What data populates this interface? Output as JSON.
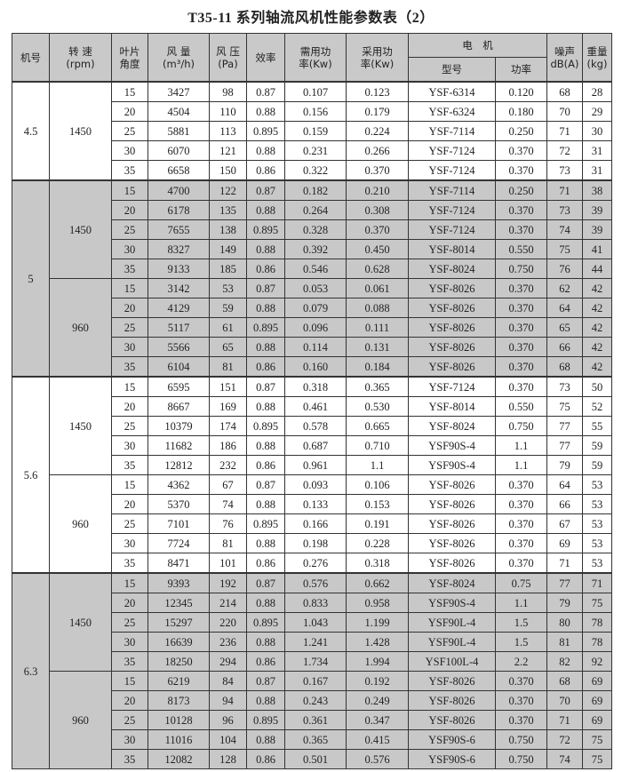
{
  "title": "T35-11 系列轴流风机性能参数表（2）",
  "headers": {
    "model": "机号",
    "speed": "转 速\n(rpm)",
    "angle": "叶片\n角度",
    "flow": "风 量\n(m³/h)",
    "pressure": "风 压\n(Pa)",
    "efficiency": "效率",
    "required_power": "需用功\n率(Kw)",
    "adopted_power": "采用功\n率(Kw)",
    "motor": "电　机",
    "motor_type": "型号",
    "motor_power": "功率",
    "noise": "噪声\ndB(A)",
    "weight": "重量\n(kg)"
  },
  "groups": [
    {
      "model": "4.5",
      "shade": "white",
      "speeds": [
        {
          "rpm": "1450",
          "rows": [
            [
              "15",
              "3427",
              "98",
              "0.87",
              "0.107",
              "0.123",
              "YSF-6314",
              "0.120",
              "68",
              "28"
            ],
            [
              "20",
              "4504",
              "110",
              "0.88",
              "0.156",
              "0.179",
              "YSF-6324",
              "0.180",
              "70",
              "29"
            ],
            [
              "25",
              "5881",
              "113",
              "0.895",
              "0.159",
              "0.224",
              "YSF-7114",
              "0.250",
              "71",
              "30"
            ],
            [
              "30",
              "6070",
              "121",
              "0.88",
              "0.231",
              "0.266",
              "YSF-7124",
              "0.370",
              "72",
              "31"
            ],
            [
              "35",
              "6658",
              "150",
              "0.86",
              "0.322",
              "0.370",
              "YSF-7124",
              "0.370",
              "73",
              "31"
            ]
          ]
        }
      ]
    },
    {
      "model": "5",
      "shade": "gray",
      "speeds": [
        {
          "rpm": "1450",
          "rows": [
            [
              "15",
              "4700",
              "122",
              "0.87",
              "0.182",
              "0.210",
              "YSF-7114",
              "0.250",
              "71",
              "38"
            ],
            [
              "20",
              "6178",
              "135",
              "0.88",
              "0.264",
              "0.308",
              "YSF-7124",
              "0.370",
              "73",
              "39"
            ],
            [
              "25",
              "7655",
              "138",
              "0.895",
              "0.328",
              "0.370",
              "YSF-7124",
              "0.370",
              "74",
              "39"
            ],
            [
              "30",
              "8327",
              "149",
              "0.88",
              "0.392",
              "0.450",
              "YSF-8014",
              "0.550",
              "75",
              "41"
            ],
            [
              "35",
              "9133",
              "185",
              "0.86",
              "0.546",
              "0.628",
              "YSF-8024",
              "0.750",
              "76",
              "44"
            ]
          ]
        },
        {
          "rpm": "960",
          "rows": [
            [
              "15",
              "3142",
              "53",
              "0.87",
              "0.053",
              "0.061",
              "YSF-8026",
              "0.370",
              "62",
              "42"
            ],
            [
              "20",
              "4129",
              "59",
              "0.88",
              "0.079",
              "0.088",
              "YSF-8026",
              "0.370",
              "64",
              "42"
            ],
            [
              "25",
              "5117",
              "61",
              "0.895",
              "0.096",
              "0.111",
              "YSF-8026",
              "0.370",
              "65",
              "42"
            ],
            [
              "30",
              "5566",
              "65",
              "0.88",
              "0.114",
              "0.131",
              "YSF-8026",
              "0.370",
              "66",
              "42"
            ],
            [
              "35",
              "6104",
              "81",
              "0.86",
              "0.160",
              "0.184",
              "YSF-8026",
              "0.370",
              "68",
              "42"
            ]
          ]
        }
      ]
    },
    {
      "model": "5.6",
      "shade": "white",
      "speeds": [
        {
          "rpm": "1450",
          "rows": [
            [
              "15",
              "6595",
              "151",
              "0.87",
              "0.318",
              "0.365",
              "YSF-7124",
              "0.370",
              "73",
              "50"
            ],
            [
              "20",
              "8667",
              "169",
              "0.88",
              "0.461",
              "0.530",
              "YSF-8014",
              "0.550",
              "75",
              "52"
            ],
            [
              "25",
              "10379",
              "174",
              "0.895",
              "0.578",
              "0.665",
              "YSF-8024",
              "0.750",
              "77",
              "55"
            ],
            [
              "30",
              "11682",
              "186",
              "0.88",
              "0.687",
              "0.710",
              "YSF90S-4",
              "1.1",
              "77",
              "59"
            ],
            [
              "35",
              "12812",
              "232",
              "0.86",
              "0.961",
              "1.1",
              "YSF90S-4",
              "1.1",
              "79",
              "59"
            ]
          ]
        },
        {
          "rpm": "960",
          "rows": [
            [
              "15",
              "4362",
              "67",
              "0.87",
              "0.093",
              "0.106",
              "YSF-8026",
              "0.370",
              "64",
              "53"
            ],
            [
              "20",
              "5370",
              "74",
              "0.88",
              "0.133",
              "0.153",
              "YSF-8026",
              "0.370",
              "66",
              "53"
            ],
            [
              "25",
              "7101",
              "76",
              "0.895",
              "0.166",
              "0.191",
              "YSF-8026",
              "0.370",
              "67",
              "53"
            ],
            [
              "30",
              "7724",
              "81",
              "0.88",
              "0.198",
              "0.228",
              "YSF-8026",
              "0.370",
              "69",
              "53"
            ],
            [
              "35",
              "8471",
              "101",
              "0.86",
              "0.276",
              "0.318",
              "YSF-8026",
              "0.370",
              "71",
              "53"
            ]
          ]
        }
      ]
    },
    {
      "model": "6.3",
      "shade": "gray",
      "speeds": [
        {
          "rpm": "1450",
          "rows": [
            [
              "15",
              "9393",
              "192",
              "0.87",
              "0.576",
              "0.662",
              "YSF-8024",
              "0.75",
              "77",
              "71"
            ],
            [
              "20",
              "12345",
              "214",
              "0.88",
              "0.833",
              "0.958",
              "YSF90S-4",
              "1.1",
              "79",
              "75"
            ],
            [
              "25",
              "15297",
              "220",
              "0.895",
              "1.043",
              "1.199",
              "YSF90L-4",
              "1.5",
              "80",
              "78"
            ],
            [
              "30",
              "16639",
              "236",
              "0.88",
              "1.241",
              "1.428",
              "YSF90L-4",
              "1.5",
              "81",
              "78"
            ],
            [
              "35",
              "18250",
              "294",
              "0.86",
              "1.734",
              "1.994",
              "YSF100L-4",
              "2.2",
              "82",
              "92"
            ]
          ]
        },
        {
          "rpm": "960",
          "rows": [
            [
              "15",
              "6219",
              "84",
              "0.87",
              "0.167",
              "0.192",
              "YSF-8026",
              "0.370",
              "68",
              "69"
            ],
            [
              "20",
              "8173",
              "94",
              "0.88",
              "0.243",
              "0.249",
              "YSF-8026",
              "0.370",
              "70",
              "69"
            ],
            [
              "25",
              "10128",
              "96",
              "0.895",
              "0.361",
              "0.347",
              "YSF-8026",
              "0.370",
              "71",
              "69"
            ],
            [
              "30",
              "11016",
              "104",
              "0.88",
              "0.365",
              "0.415",
              "YSF90S-6",
              "0.750",
              "72",
              "75"
            ],
            [
              "35",
              "12082",
              "128",
              "0.86",
              "0.501",
              "0.576",
              "YSF90S-6",
              "0.750",
              "74",
              "75"
            ]
          ]
        }
      ]
    }
  ]
}
